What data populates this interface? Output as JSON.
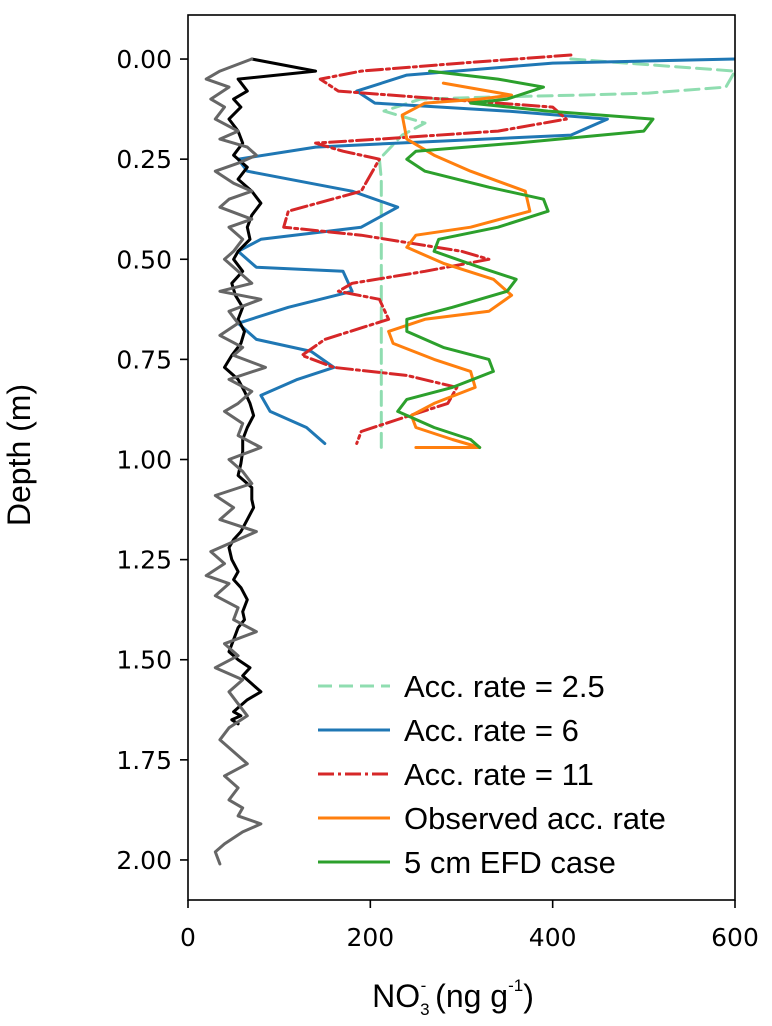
{
  "chart_data": {
    "type": "line",
    "xlabel": {
      "main": "NO",
      "sub": "3",
      "sup": "-",
      "rest": " (ng g",
      "rest_sup": "-1",
      "tail": ")"
    },
    "ylabel": "Depth (m)",
    "xlim": [
      0,
      600
    ],
    "ylim": [
      2.1,
      -0.11
    ],
    "xticks": [
      0,
      200,
      400,
      600
    ],
    "xtick_labels": [
      "0",
      "200",
      "400",
      "600"
    ],
    "yticks": [
      0.0,
      0.25,
      0.5,
      0.75,
      1.0,
      1.25,
      1.5,
      1.75,
      2.0
    ],
    "ytick_labels": [
      "0.00",
      "0.25",
      "0.50",
      "0.75",
      "1.00",
      "1.25",
      "1.50",
      "1.75",
      "2.00"
    ],
    "grid": false,
    "legend_position": "lower-right",
    "series": [
      {
        "name": "Acc. rate = 2.5",
        "color": "#8fddb0",
        "dash": "dashed",
        "x": [
          420,
          600,
          590,
          505,
          430,
          330,
          255,
          215,
          260,
          235,
          210,
          212,
          212,
          212,
          212,
          212,
          212,
          212,
          212,
          212
        ],
        "y": [
          0.0,
          0.03,
          0.07,
          0.085,
          0.09,
          0.095,
          0.1,
          0.13,
          0.16,
          0.19,
          0.25,
          0.3,
          0.4,
          0.5,
          0.6,
          0.7,
          0.8,
          0.88,
          0.93,
          0.97
        ]
      },
      {
        "name": "Acc. rate = 6",
        "color": "#1f77b4",
        "dash": "solid",
        "x": [
          600,
          400,
          240,
          185,
          205,
          350,
          460,
          420,
          230,
          140,
          55,
          65,
          180,
          230,
          190,
          80,
          55,
          75,
          170,
          180,
          110,
          55,
          75,
          135,
          160,
          120,
          80,
          90,
          130,
          150
        ],
        "y": [
          0.0,
          0.01,
          0.04,
          0.08,
          0.11,
          0.13,
          0.15,
          0.19,
          0.21,
          0.22,
          0.25,
          0.28,
          0.33,
          0.37,
          0.42,
          0.45,
          0.48,
          0.52,
          0.53,
          0.58,
          0.62,
          0.66,
          0.7,
          0.73,
          0.77,
          0.8,
          0.84,
          0.88,
          0.92,
          0.96
        ]
      },
      {
        "name": "Acc. rate = 11",
        "color": "#d62728",
        "dash": "dashdot",
        "x": [
          420,
          300,
          190,
          145,
          165,
          280,
          400,
          415,
          340,
          210,
          140,
          170,
          210,
          190,
          110,
          105,
          190,
          300,
          330,
          260,
          180,
          165,
          210,
          220,
          150,
          125,
          160,
          240,
          295,
          285,
          230,
          190,
          185
        ],
        "y": [
          -0.01,
          0.01,
          0.03,
          0.05,
          0.08,
          0.1,
          0.12,
          0.15,
          0.18,
          0.2,
          0.21,
          0.23,
          0.25,
          0.33,
          0.38,
          0.42,
          0.44,
          0.48,
          0.5,
          0.53,
          0.56,
          0.58,
          0.6,
          0.65,
          0.7,
          0.74,
          0.77,
          0.79,
          0.82,
          0.86,
          0.9,
          0.93,
          0.96
        ]
      },
      {
        "name": "Observed acc. rate",
        "color": "#ff7f0e",
        "dash": "solid",
        "x": [
          280,
          330,
          355,
          320,
          260,
          235,
          240,
          270,
          310,
          370,
          375,
          310,
          250,
          240,
          280,
          335,
          355,
          330,
          260,
          220,
          225,
          270,
          310,
          315,
          270,
          245,
          250,
          290,
          320,
          280,
          250
        ],
        "y": [
          0.06,
          0.08,
          0.09,
          0.1,
          0.11,
          0.14,
          0.2,
          0.24,
          0.28,
          0.33,
          0.38,
          0.42,
          0.44,
          0.47,
          0.51,
          0.55,
          0.59,
          0.63,
          0.65,
          0.68,
          0.71,
          0.75,
          0.78,
          0.82,
          0.86,
          0.89,
          0.92,
          0.95,
          0.97,
          0.97,
          0.97
        ]
      },
      {
        "name": "5 cm EFD case",
        "color": "#2ca02c",
        "dash": "solid",
        "x": [
          265,
          340,
          390,
          350,
          310,
          395,
          510,
          500,
          360,
          250,
          240,
          260,
          330,
          390,
          395,
          340,
          275,
          270,
          320,
          360,
          350,
          290,
          240,
          240,
          280,
          330,
          335,
          290,
          240,
          230,
          270,
          310,
          320
        ],
        "y": [
          0.03,
          0.05,
          0.07,
          0.1,
          0.11,
          0.13,
          0.15,
          0.18,
          0.21,
          0.23,
          0.25,
          0.28,
          0.32,
          0.35,
          0.38,
          0.42,
          0.45,
          0.48,
          0.52,
          0.55,
          0.58,
          0.62,
          0.65,
          0.68,
          0.72,
          0.75,
          0.78,
          0.82,
          0.85,
          0.88,
          0.92,
          0.95,
          0.97
        ]
      },
      {
        "name": "",
        "legend": false,
        "color": "#000000",
        "dash": "solid",
        "x": [
          70,
          140,
          55,
          65,
          50,
          58,
          45,
          55,
          60,
          50,
          65,
          55,
          70,
          80,
          70,
          65,
          68,
          55,
          50,
          60,
          48,
          52,
          60,
          55,
          62,
          58,
          48,
          40,
          55,
          62,
          68,
          72,
          65,
          60,
          60,
          58,
          55,
          70,
          70,
          72,
          65,
          58,
          50,
          45,
          48,
          55,
          50,
          58,
          65,
          60,
          62,
          55,
          50,
          45,
          55,
          68,
          60,
          70,
          80,
          65,
          55,
          50,
          58,
          48,
          55
        ],
        "y": [
          0.0,
          0.03,
          0.05,
          0.08,
          0.1,
          0.12,
          0.15,
          0.18,
          0.21,
          0.24,
          0.27,
          0.3,
          0.33,
          0.36,
          0.39,
          0.42,
          0.45,
          0.48,
          0.5,
          0.53,
          0.56,
          0.59,
          0.62,
          0.65,
          0.68,
          0.71,
          0.74,
          0.77,
          0.8,
          0.83,
          0.86,
          0.89,
          0.92,
          0.95,
          0.98,
          1.01,
          1.04,
          1.07,
          1.1,
          1.12,
          1.15,
          1.18,
          1.2,
          1.22,
          1.25,
          1.28,
          1.3,
          1.32,
          1.35,
          1.38,
          1.4,
          1.42,
          1.45,
          1.48,
          1.5,
          1.52,
          1.54,
          1.56,
          1.58,
          1.6,
          1.62,
          1.63,
          1.64,
          1.65,
          1.66
        ]
      },
      {
        "name": "",
        "legend": false,
        "color": "#666666",
        "dash": "solid",
        "x": [
          70,
          35,
          20,
          45,
          25,
          40,
          30,
          55,
          35,
          65,
          75,
          55,
          30,
          50,
          70,
          45,
          35,
          70,
          45,
          60,
          50,
          40,
          55,
          70,
          35,
          80,
          45,
          55,
          35,
          60,
          50,
          85,
          45,
          70,
          55,
          40,
          60,
          55,
          80,
          45,
          60,
          70,
          30,
          50,
          35,
          75,
          55,
          25,
          40,
          20,
          45,
          30,
          55,
          50,
          75,
          40,
          55,
          30,
          60,
          45,
          55,
          65,
          45,
          35,
          50,
          65,
          40,
          55,
          45,
          60,
          55,
          80,
          60,
          40,
          30,
          35
        ],
        "y": [
          0.0,
          0.03,
          0.05,
          0.07,
          0.1,
          0.12,
          0.15,
          0.18,
          0.2,
          0.22,
          0.24,
          0.26,
          0.28,
          0.31,
          0.33,
          0.35,
          0.37,
          0.4,
          0.42,
          0.45,
          0.48,
          0.5,
          0.53,
          0.56,
          0.58,
          0.6,
          0.63,
          0.66,
          0.69,
          0.72,
          0.74,
          0.77,
          0.8,
          0.83,
          0.86,
          0.88,
          0.91,
          0.94,
          0.97,
          1.0,
          1.03,
          1.06,
          1.09,
          1.12,
          1.15,
          1.18,
          1.2,
          1.23,
          1.26,
          1.29,
          1.31,
          1.34,
          1.37,
          1.4,
          1.43,
          1.46,
          1.49,
          1.52,
          1.55,
          1.58,
          1.61,
          1.64,
          1.67,
          1.7,
          1.73,
          1.76,
          1.79,
          1.82,
          1.85,
          1.87,
          1.89,
          1.91,
          1.93,
          1.96,
          1.98,
          2.01
        ]
      }
    ]
  }
}
